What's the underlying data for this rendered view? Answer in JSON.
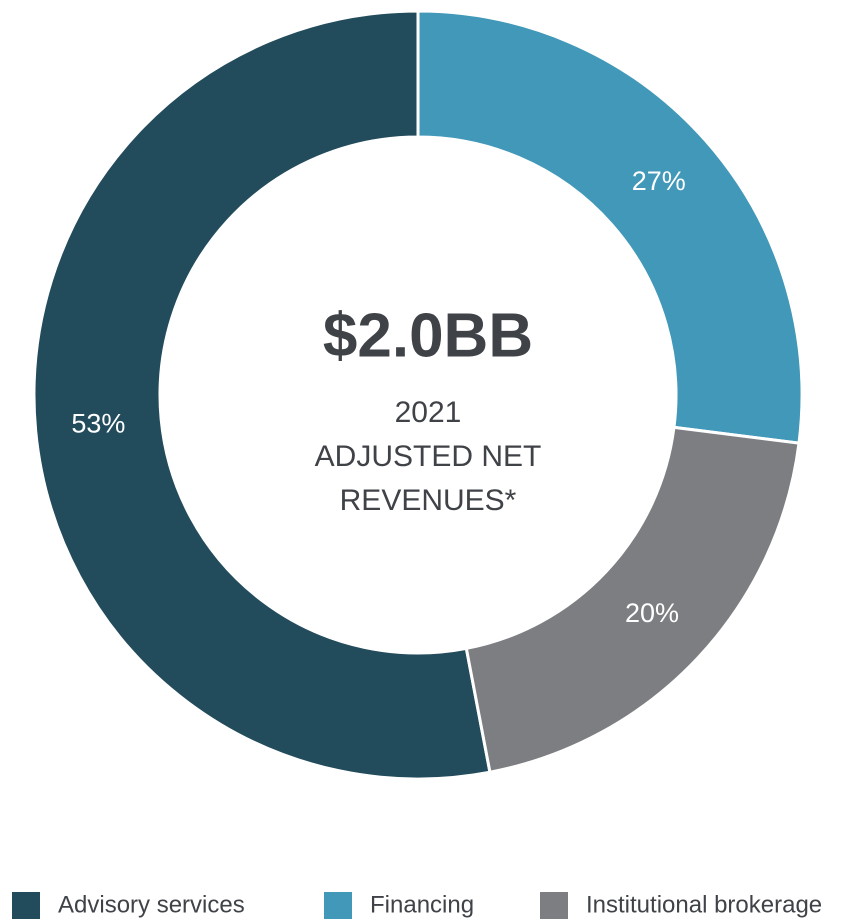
{
  "chart_data": {
    "type": "donut",
    "center_value": "$2.0BB",
    "center_label": [
      "2021",
      "ADJUSTED NET",
      "REVENUES*"
    ],
    "categories": [
      "Advisory services",
      "Financing",
      "Institutional brokerage"
    ],
    "values": [
      53,
      27,
      20
    ],
    "value_labels": [
      "53%",
      "27%",
      "20%"
    ],
    "colors": [
      "#224b5c",
      "#4198b8",
      "#7d7e82"
    ],
    "legend": "bottom"
  }
}
